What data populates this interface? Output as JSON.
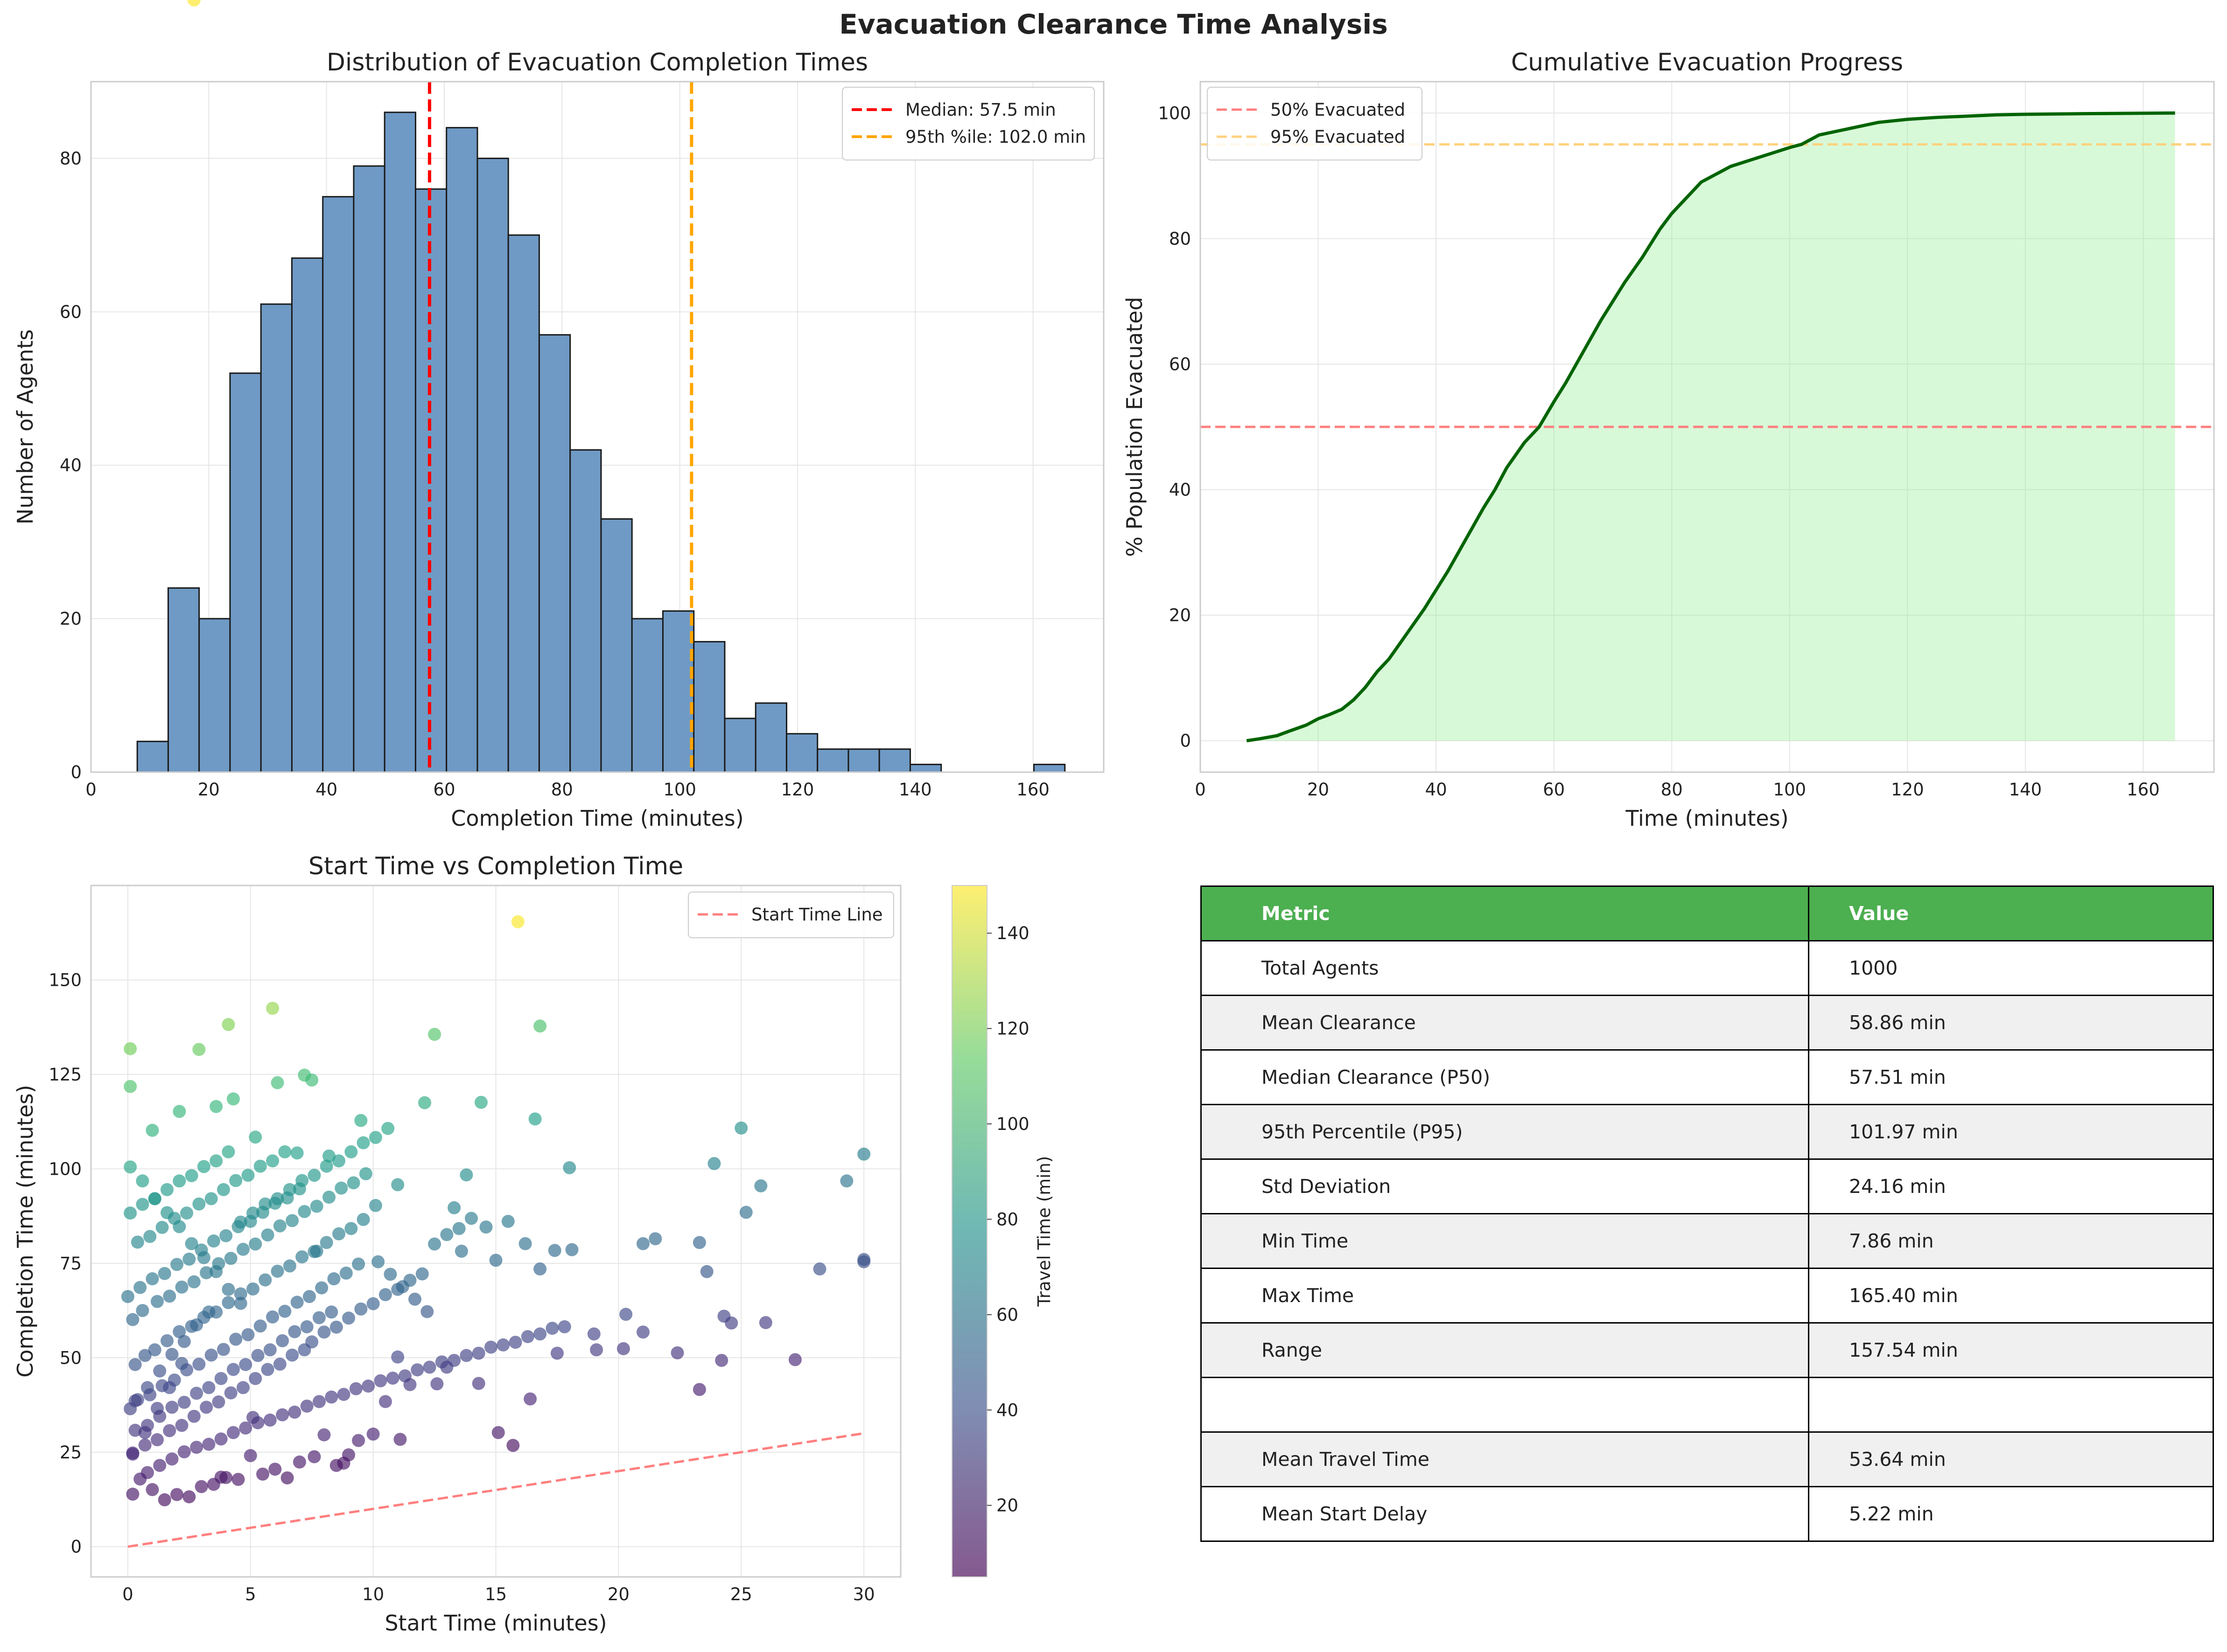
{
  "suptitle": "Evacuation Clearance Time Analysis",
  "colors": {
    "hist_bar": "#6f9ac5",
    "median_line": "#ff0000",
    "p95_line": "#ffa500",
    "cumulative_line": "#006400",
    "cumulative_fill": "#90ee90",
    "line50": "#ff7f7f",
    "line95": "#ffd27f",
    "start_line": "#ff7f7f",
    "table_header": "#4caf50",
    "table_alt_row": "#f0f0f0"
  },
  "chart_data": [
    {
      "type": "bar",
      "title": "Distribution of Evacuation Completion Times",
      "xlabel": "Completion Time (minutes)",
      "ylabel": "Number of Agents",
      "xlim": [
        0,
        172
      ],
      "ylim": [
        0,
        90
      ],
      "xticks": [
        0,
        20,
        40,
        60,
        80,
        100,
        120,
        140,
        160
      ],
      "yticks": [
        0,
        20,
        40,
        60,
        80
      ],
      "bin_start": 7.86,
      "bin_width": 5.2513,
      "values": [
        4,
        24,
        20,
        52,
        61,
        67,
        75,
        79,
        86,
        76,
        84,
        80,
        70,
        57,
        42,
        33,
        20,
        21,
        17,
        7,
        9,
        5,
        3,
        3,
        3,
        1,
        0,
        0,
        0,
        1
      ],
      "vlines": [
        {
          "name": "Median: 57.5 min",
          "x": 57.5
        },
        {
          "name": "95th %ile: 102.0 min",
          "x": 102.0
        }
      ],
      "legend": "top-right",
      "grid": true
    },
    {
      "type": "area",
      "title": "Cumulative Evacuation Progress",
      "xlabel": "Time (minutes)",
      "ylabel": "% Population Evacuated",
      "xlim": [
        0,
        172
      ],
      "ylim": [
        -5,
        105
      ],
      "xticks": [
        0,
        20,
        40,
        60,
        80,
        100,
        120,
        140,
        160
      ],
      "yticks": [
        0,
        20,
        40,
        60,
        80,
        100
      ],
      "x": [
        7.86,
        10,
        13,
        15,
        18,
        20,
        22,
        24,
        26,
        28,
        30,
        32,
        35,
        38,
        40,
        42,
        45,
        48,
        50,
        52,
        55,
        57.5,
        60,
        62,
        65,
        68,
        70,
        72,
        75,
        78,
        80,
        85,
        90,
        95,
        100,
        102,
        105,
        110,
        115,
        120,
        125,
        130,
        135,
        140,
        150,
        165.4
      ],
      "y": [
        0,
        0.3,
        0.8,
        1.5,
        2.5,
        3.5,
        4.2,
        5,
        6.5,
        8.5,
        11,
        13,
        17,
        21,
        24,
        27,
        32,
        37,
        40,
        43.5,
        47.5,
        50,
        54,
        57,
        62,
        67,
        70,
        73,
        77,
        81.5,
        84,
        89,
        91.5,
        93,
        94.5,
        95,
        96.5,
        97.5,
        98.5,
        99,
        99.3,
        99.5,
        99.7,
        99.8,
        99.9,
        100
      ],
      "hlines": [
        {
          "name": "50% Evacuated",
          "y": 50
        },
        {
          "name": "95% Evacuated",
          "y": 95
        }
      ],
      "legend": "top-left",
      "grid": true
    },
    {
      "type": "scatter",
      "title": "Start Time vs Completion Time",
      "xlabel": "Start Time (minutes)",
      "ylabel": "Completion Time (minutes)",
      "xlim": [
        -1.5,
        31.5
      ],
      "ylim": [
        -8,
        175
      ],
      "xticks": [
        0,
        5,
        10,
        15,
        20,
        25,
        30
      ],
      "yticks": [
        0,
        25,
        50,
        75,
        100,
        125,
        150
      ],
      "colorbar_label": "Travel Time (min)",
      "colorbar_range": [
        5,
        150
      ],
      "colorbar_ticks": [
        20,
        40,
        60,
        80,
        100,
        120,
        140
      ],
      "points_x": [
        15.9,
        5.9,
        4.1,
        16.8,
        12.5,
        0.1,
        2.9,
        7.2,
        7.5,
        0.1,
        6.1,
        4.3,
        3.6,
        2.1,
        5.2,
        1.0,
        9.5,
        8.2,
        10.1,
        13.8,
        14.4,
        16.6,
        12.1,
        11.0,
        13.3,
        14.6,
        15.5,
        13.6,
        15.0,
        16.2,
        17.4,
        16.8,
        18.1,
        19.0,
        20.2,
        21.0,
        21.5,
        22.4,
        23.3,
        23.6,
        23.9,
        24.3,
        24.6,
        25.0,
        25.2,
        25.8,
        26.0,
        27.2,
        28.2,
        29.3,
        30.0,
        30.0,
        30.0,
        24.2,
        23.3,
        18.0,
        19.1,
        21.0,
        20.3,
        17.5,
        16.4,
        15.7,
        15.1,
        14.3,
        13.0,
        12.6,
        11.5,
        11.0,
        10.5,
        10.0,
        9.4,
        9.0,
        8.5,
        8.0,
        7.6,
        7.0,
        6.5,
        6.0,
        5.5,
        5.0,
        4.5,
        4.0,
        3.5,
        3.0,
        2.5,
        2.0,
        1.5,
        1.0,
        0.5,
        0.2,
        0.8,
        1.3,
        1.8,
        2.3,
        2.8,
        3.3,
        3.8,
        4.3,
        4.8,
        5.3,
        5.8,
        6.3,
        6.8,
        7.3,
        7.8,
        8.3,
        8.8,
        9.3,
        9.8,
        10.3,
        10.8,
        11.3,
        11.8,
        12.3,
        12.8,
        13.3,
        13.8,
        14.3,
        14.8,
        15.3,
        15.8,
        16.3,
        16.8,
        17.3,
        17.8,
        0.1,
        0.4,
        0.9,
        1.4,
        1.9,
        2.4,
        2.9,
        3.4,
        3.9,
        4.4,
        4.9,
        5.4,
        5.9,
        6.4,
        6.9,
        7.4,
        7.9,
        8.4,
        8.9,
        9.4,
        0.3,
        0.7,
        1.1,
        1.6,
        2.1,
        2.6,
        3.1,
        3.6,
        4.1,
        4.6,
        5.1,
        5.6,
        6.1,
        6.6,
        7.1,
        7.6,
        8.1,
        8.6,
        9.1,
        9.6,
        0.2,
        0.6,
        1.2,
        1.7,
        2.2,
        2.7,
        3.2,
        3.7,
        4.2,
        4.7,
        5.2,
        5.7,
        6.2,
        6.7,
        7.2,
        7.7,
        8.2,
        8.7,
        9.2,
        9.7,
        10.2,
        10.7,
        11.2,
        11.7,
        12.2,
        0.0,
        0.5,
        1.0,
        1.5,
        2.0,
        2.5,
        3.0,
        3.5,
        4.0,
        4.5,
        5.0,
        5.5,
        6.0,
        6.5,
        7.0,
        7.5,
        8.0,
        8.5,
        9.0,
        9.5,
        10.0,
        10.5,
        11.0,
        11.5,
        12.0,
        12.5,
        13.0,
        13.5,
        14.0,
        0.1,
        0.6,
        1.1,
        1.6,
        2.1,
        2.6,
        3.1,
        3.6,
        4.1,
        4.6,
        5.1,
        5.6,
        6.1,
        6.6,
        7.1,
        7.6,
        8.1,
        8.6,
        9.1,
        9.6,
        10.1,
        10.6,
        11.1,
        0.3,
        0.8,
        1.3,
        1.8,
        2.3,
        2.8,
        3.3,
        3.8,
        4.3,
        4.8,
        5.3,
        5.8,
        6.3,
        6.8,
        7.3,
        7.8,
        8.3,
        8.8,
        0.2,
        0.7,
        1.2,
        1.7,
        2.2,
        2.7,
        3.2,
        3.7,
        4.2,
        4.7,
        5.2,
        5.7,
        6.2,
        6.7,
        7.2,
        7.7,
        0.4,
        0.9,
        1.4,
        1.9,
        2.4,
        2.9,
        3.4,
        3.9,
        4.4,
        4.9,
        5.4,
        5.9,
        6.4,
        6.9,
        0.1,
        0.6,
        1.1,
        1.6,
        2.1,
        2.6,
        3.1,
        3.6,
        4.1,
        4.6,
        5.1,
        0.3,
        0.8,
        1.3,
        1.8,
        2.3,
        2.8,
        3.3,
        3.8,
        0.2,
        0.7,
        1.2,
        1.7,
        2.2,
        2.7
      ],
      "points_y": [
        165.4,
        142.5,
        138.2,
        137.8,
        135.6,
        131.8,
        131.6,
        124.8,
        123.5,
        121.8,
        122.8,
        118.5,
        116.5,
        115.2,
        108.4,
        110.2,
        112.8,
        103.4,
        90.3,
        98.4,
        117.6,
        113.2,
        117.5,
        95.8,
        89.7,
        84.6,
        86.1,
        78.2,
        75.8,
        80.2,
        78.4,
        73.5,
        78.6,
        56.3,
        52.4,
        56.8,
        81.5,
        51.3,
        41.6,
        72.8,
        101.4,
        61.0,
        59.2,
        110.8,
        88.5,
        95.5,
        59.3,
        49.5,
        73.5,
        96.8,
        103.9,
        75.4,
        76.0,
        49.3,
        80.5,
        100.3,
        52.1,
        80.2,
        61.5,
        51.2,
        39.1,
        26.8,
        30.2,
        43.2,
        47.5,
        43.1,
        42.9,
        50.2,
        38.4,
        29.8,
        28.1,
        24.3,
        21.5,
        29.6,
        23.8,
        22.4,
        18.2,
        20.5,
        19.2,
        24.1,
        17.8,
        18.3,
        16.5,
        15.9,
        13.2,
        13.8,
        12.4,
        15.1,
        17.9,
        13.9,
        19.6,
        21.5,
        23.2,
        25.1,
        26.3,
        27.1,
        28.5,
        30.2,
        31.4,
        32.8,
        33.5,
        34.9,
        35.6,
        37.2,
        38.4,
        39.6,
        40.3,
        41.8,
        42.5,
        43.9,
        44.6,
        45.2,
        46.8,
        47.5,
        48.9,
        49.3,
        50.6,
        51.2,
        52.8,
        53.4,
        54.1,
        55.6,
        56.3,
        57.8,
        58.2,
        36.5,
        38.9,
        40.2,
        42.6,
        44.1,
        46.8,
        48.3,
        50.7,
        52.2,
        54.9,
        56.1,
        58.4,
        60.8,
        62.3,
        64.7,
        66.2,
        68.5,
        70.9,
        72.4,
        74.8,
        48.2,
        50.6,
        52.1,
        54.5,
        56.9,
        58.3,
        60.7,
        62.1,
        64.6,
        66.9,
        68.2,
        70.6,
        72.9,
        74.3,
        76.7,
        78.1,
        80.5,
        82.8,
        84.2,
        86.6,
        60.1,
        62.5,
        64.9,
        66.3,
        68.7,
        70.1,
        72.5,
        74.9,
        76.3,
        78.7,
        80.1,
        82.5,
        84.9,
        86.3,
        88.7,
        90.1,
        92.5,
        94.9,
        96.3,
        98.7,
        75.4,
        72.1,
        68.8,
        65.5,
        62.2,
        66.2,
        68.6,
        70.9,
        72.3,
        74.7,
        76.1,
        78.5,
        80.9,
        82.3,
        84.7,
        86.1,
        88.5,
        90.9,
        92.3,
        94.7,
        54.2,
        56.8,
        58.1,
        60.5,
        62.9,
        64.3,
        66.7,
        68.1,
        70.5,
        72.2,
        80.1,
        82.6,
        84.2,
        86.9,
        88.3,
        90.6,
        92.1,
        94.5,
        96.8,
        98.2,
        100.6,
        102.1,
        104.5,
        85.9,
        88.3,
        90.7,
        92.1,
        94.5,
        96.9,
        98.3,
        100.7,
        102.1,
        104.5,
        106.9,
        108.3,
        110.7,
        28.4,
        30.8,
        32.1,
        34.5,
        36.9,
        38.2,
        40.6,
        42.1,
        44.5,
        46.9,
        48.2,
        50.6,
        52.1,
        54.5,
        56.9,
        58.2,
        60.6,
        62.1,
        22.1,
        24.5,
        26.9,
        28.3,
        30.7,
        32.1,
        34.5,
        36.9,
        38.3,
        40.7,
        42.1,
        44.5,
        46.9,
        48.3,
        50.7,
        52.1,
        78.2,
        80.6,
        82.1,
        84.5,
        86.9,
        88.3,
        90.7,
        92.1,
        94.5,
        96.9,
        98.3,
        100.7,
        102.1,
        104.5,
        104.2,
        100.5,
        96.8,
        92.1,
        88.4,
        84.7,
        80.2,
        76.5,
        72.8,
        68.1,
        64.4,
        34.2,
        38.6,
        42.1,
        46.5,
        50.9,
        54.3,
        58.7,
        62.1,
        18.4,
        24.8,
        30.2,
        36.6,
        42.1,
        48.5
      ],
      "legend_label": "Start Time Line",
      "line": {
        "x": [
          0,
          30
        ],
        "y": [
          0,
          30
        ]
      },
      "legend": "top-right",
      "grid": true
    }
  ],
  "table": {
    "header": [
      "Metric",
      "Value"
    ],
    "rows": [
      [
        "Total Agents",
        "1000"
      ],
      [
        "Mean Clearance",
        "58.86 min"
      ],
      [
        "Median Clearance (P50)",
        "57.51 min"
      ],
      [
        "95th Percentile (P95)",
        "101.97 min"
      ],
      [
        "Std Deviation",
        "24.16 min"
      ],
      [
        "Min Time",
        "7.86 min"
      ],
      [
        "Max Time",
        "165.40 min"
      ],
      [
        "Range",
        "157.54 min"
      ],
      [
        "",
        ""
      ],
      [
        "Mean Travel Time",
        "53.64 min"
      ],
      [
        "Mean Start Delay",
        "5.22 min"
      ]
    ]
  }
}
